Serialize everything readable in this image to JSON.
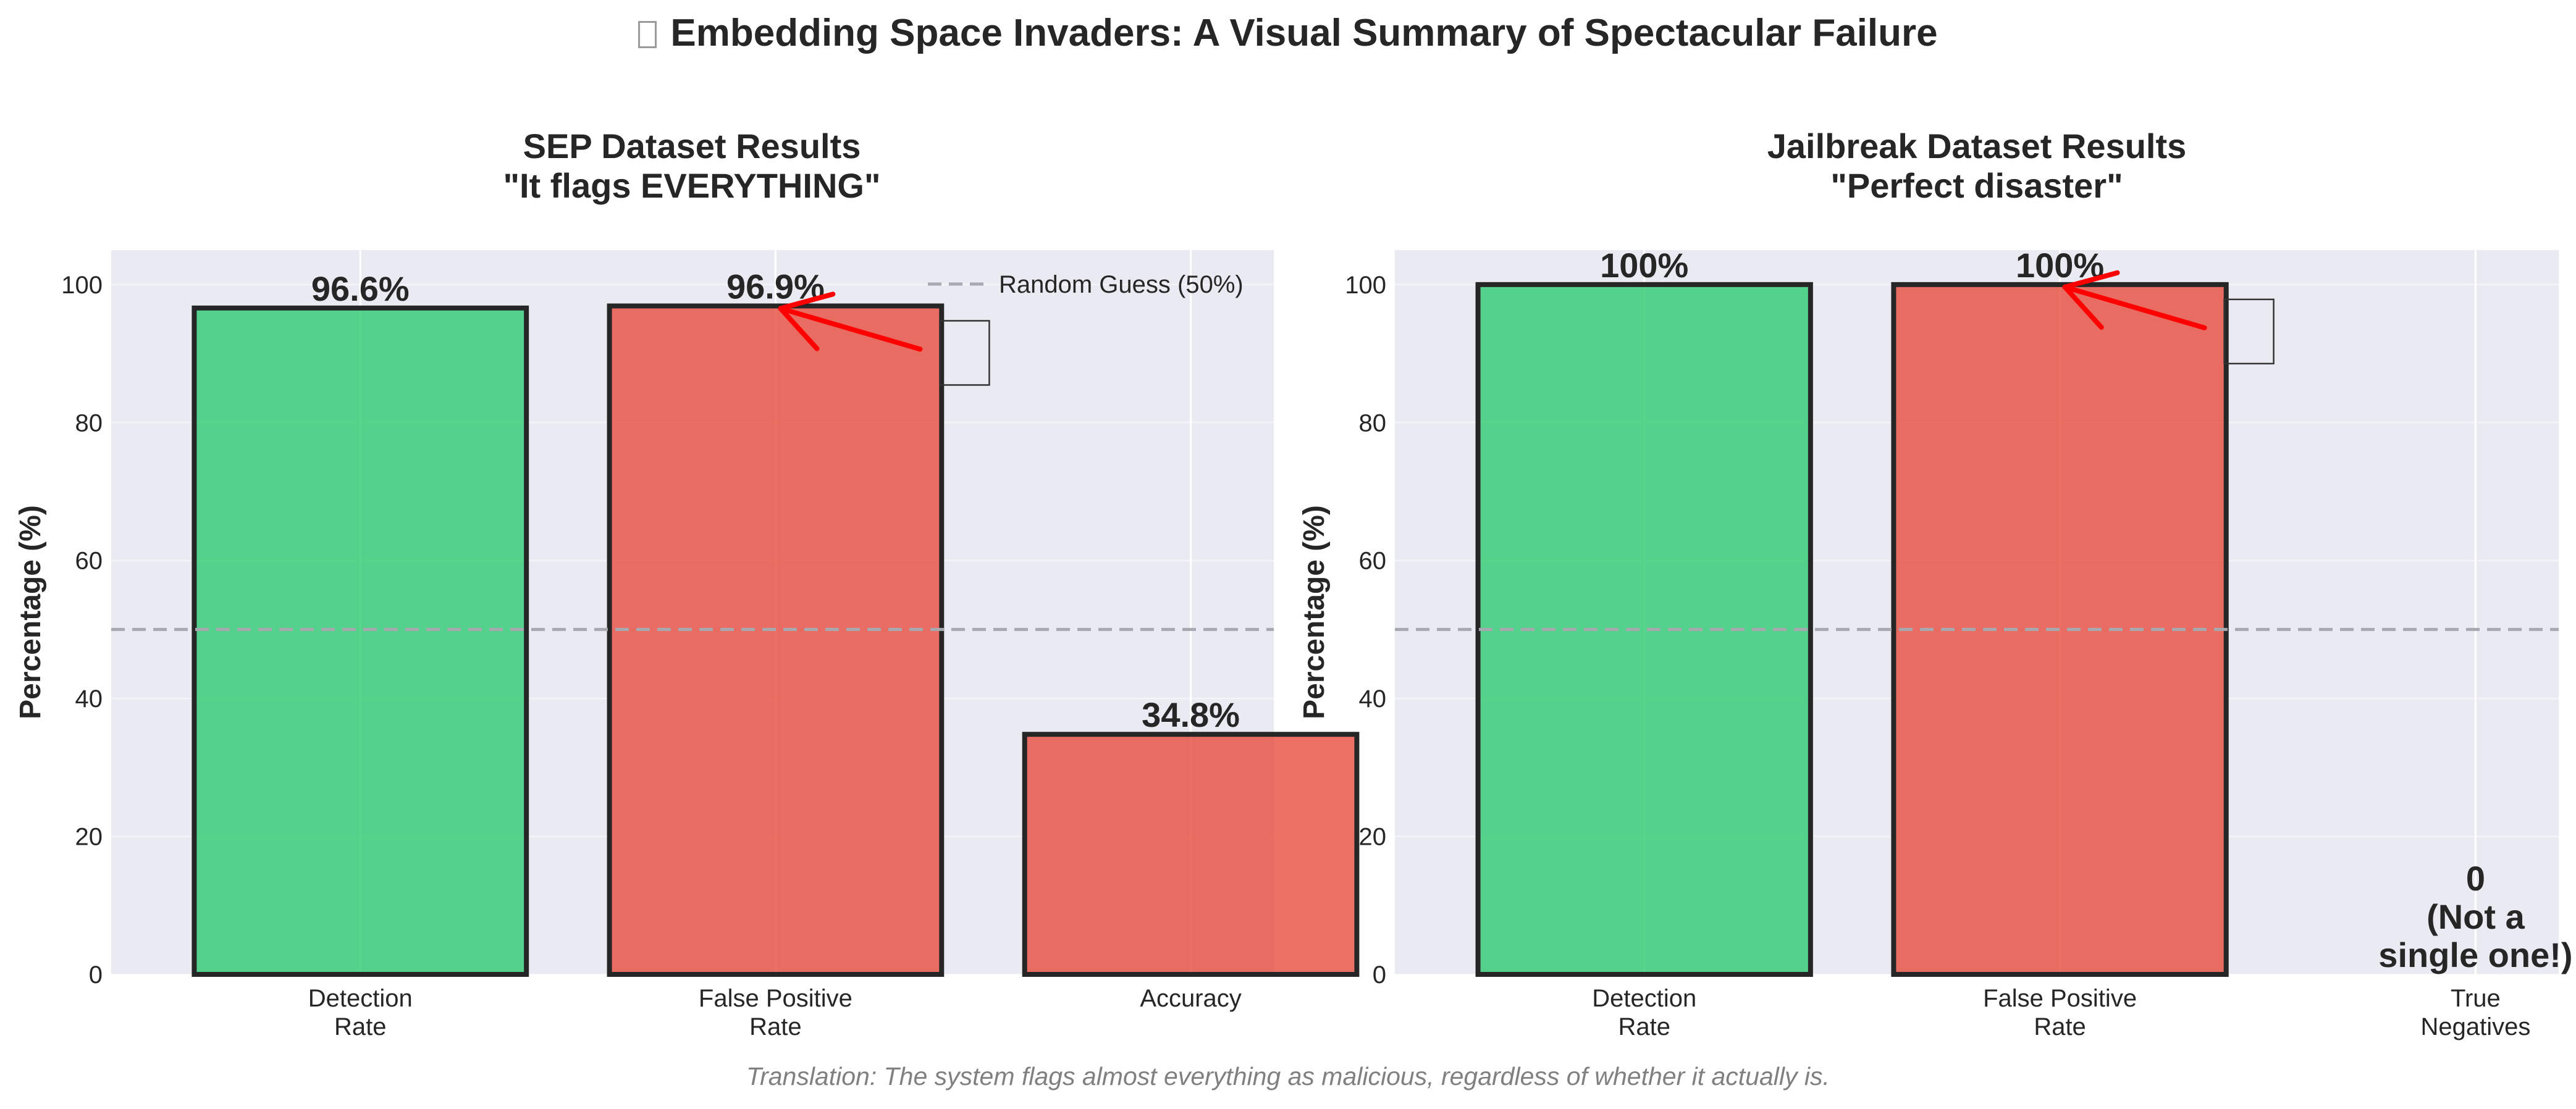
{
  "figure": {
    "title_icon": "rocket-emoji-icon",
    "title": "Embedding Space Invaders: A Visual Summary of Spectacular Failure",
    "caption": "Translation: The system flags almost everything as malicious, regardless of whether it actually is."
  },
  "colors": {
    "good": "#2ecc71",
    "bad": "#e74c3c",
    "plot_bg": "#eaeaf2",
    "grid": "#ffffff",
    "edge": "#262626",
    "reference": "#a8a8b0",
    "arrow": "#ff0000"
  },
  "chart_data": [
    {
      "type": "bar",
      "title": [
        "SEP Dataset Results",
        "\"It flags EVERYTHING\""
      ],
      "categories": [
        [
          "Detection",
          "Rate"
        ],
        [
          "False Positive",
          "Rate"
        ],
        [
          "Accuracy"
        ]
      ],
      "values": [
        96.6,
        96.9,
        34.8
      ],
      "value_labels": [
        [
          "96.6%"
        ],
        [
          "96.9%"
        ],
        [
          "34.8%"
        ]
      ],
      "bar_colors": [
        "good",
        "bad",
        "bad"
      ],
      "ylabel": "Percentage (%)",
      "ylim": [
        0,
        105
      ],
      "yticks": [
        0,
        20,
        40,
        60,
        80,
        100
      ],
      "grid": true,
      "reference_line": {
        "value": 50,
        "label": "Random Guess (50%)",
        "style": "dashed"
      },
      "legend": {
        "placement": "top-right",
        "entries": [
          "Random Guess (50%)"
        ]
      },
      "annotation": {
        "type": "arrow",
        "target_bar": 1,
        "icon": "emoji-placeholder-box"
      }
    },
    {
      "type": "bar",
      "title": [
        "Jailbreak Dataset Results",
        "\"Perfect disaster\""
      ],
      "categories": [
        [
          "Detection",
          "Rate"
        ],
        [
          "False Positive",
          "Rate"
        ],
        [
          "True",
          "Negatives"
        ]
      ],
      "values": [
        100,
        100,
        0
      ],
      "value_labels": [
        [
          "100%"
        ],
        [
          "100%"
        ],
        [
          "0",
          "(Not a",
          "single one!)"
        ]
      ],
      "bar_colors": [
        "good",
        "bad",
        "bad"
      ],
      "ylabel": "Percentage (%)",
      "ylim": [
        0,
        105
      ],
      "yticks": [
        0,
        20,
        40,
        60,
        80,
        100
      ],
      "grid": true,
      "reference_line": {
        "value": 50,
        "style": "dashed"
      },
      "annotation": {
        "type": "arrow",
        "target_bar": 1,
        "icon": "emoji-placeholder-box"
      }
    }
  ]
}
